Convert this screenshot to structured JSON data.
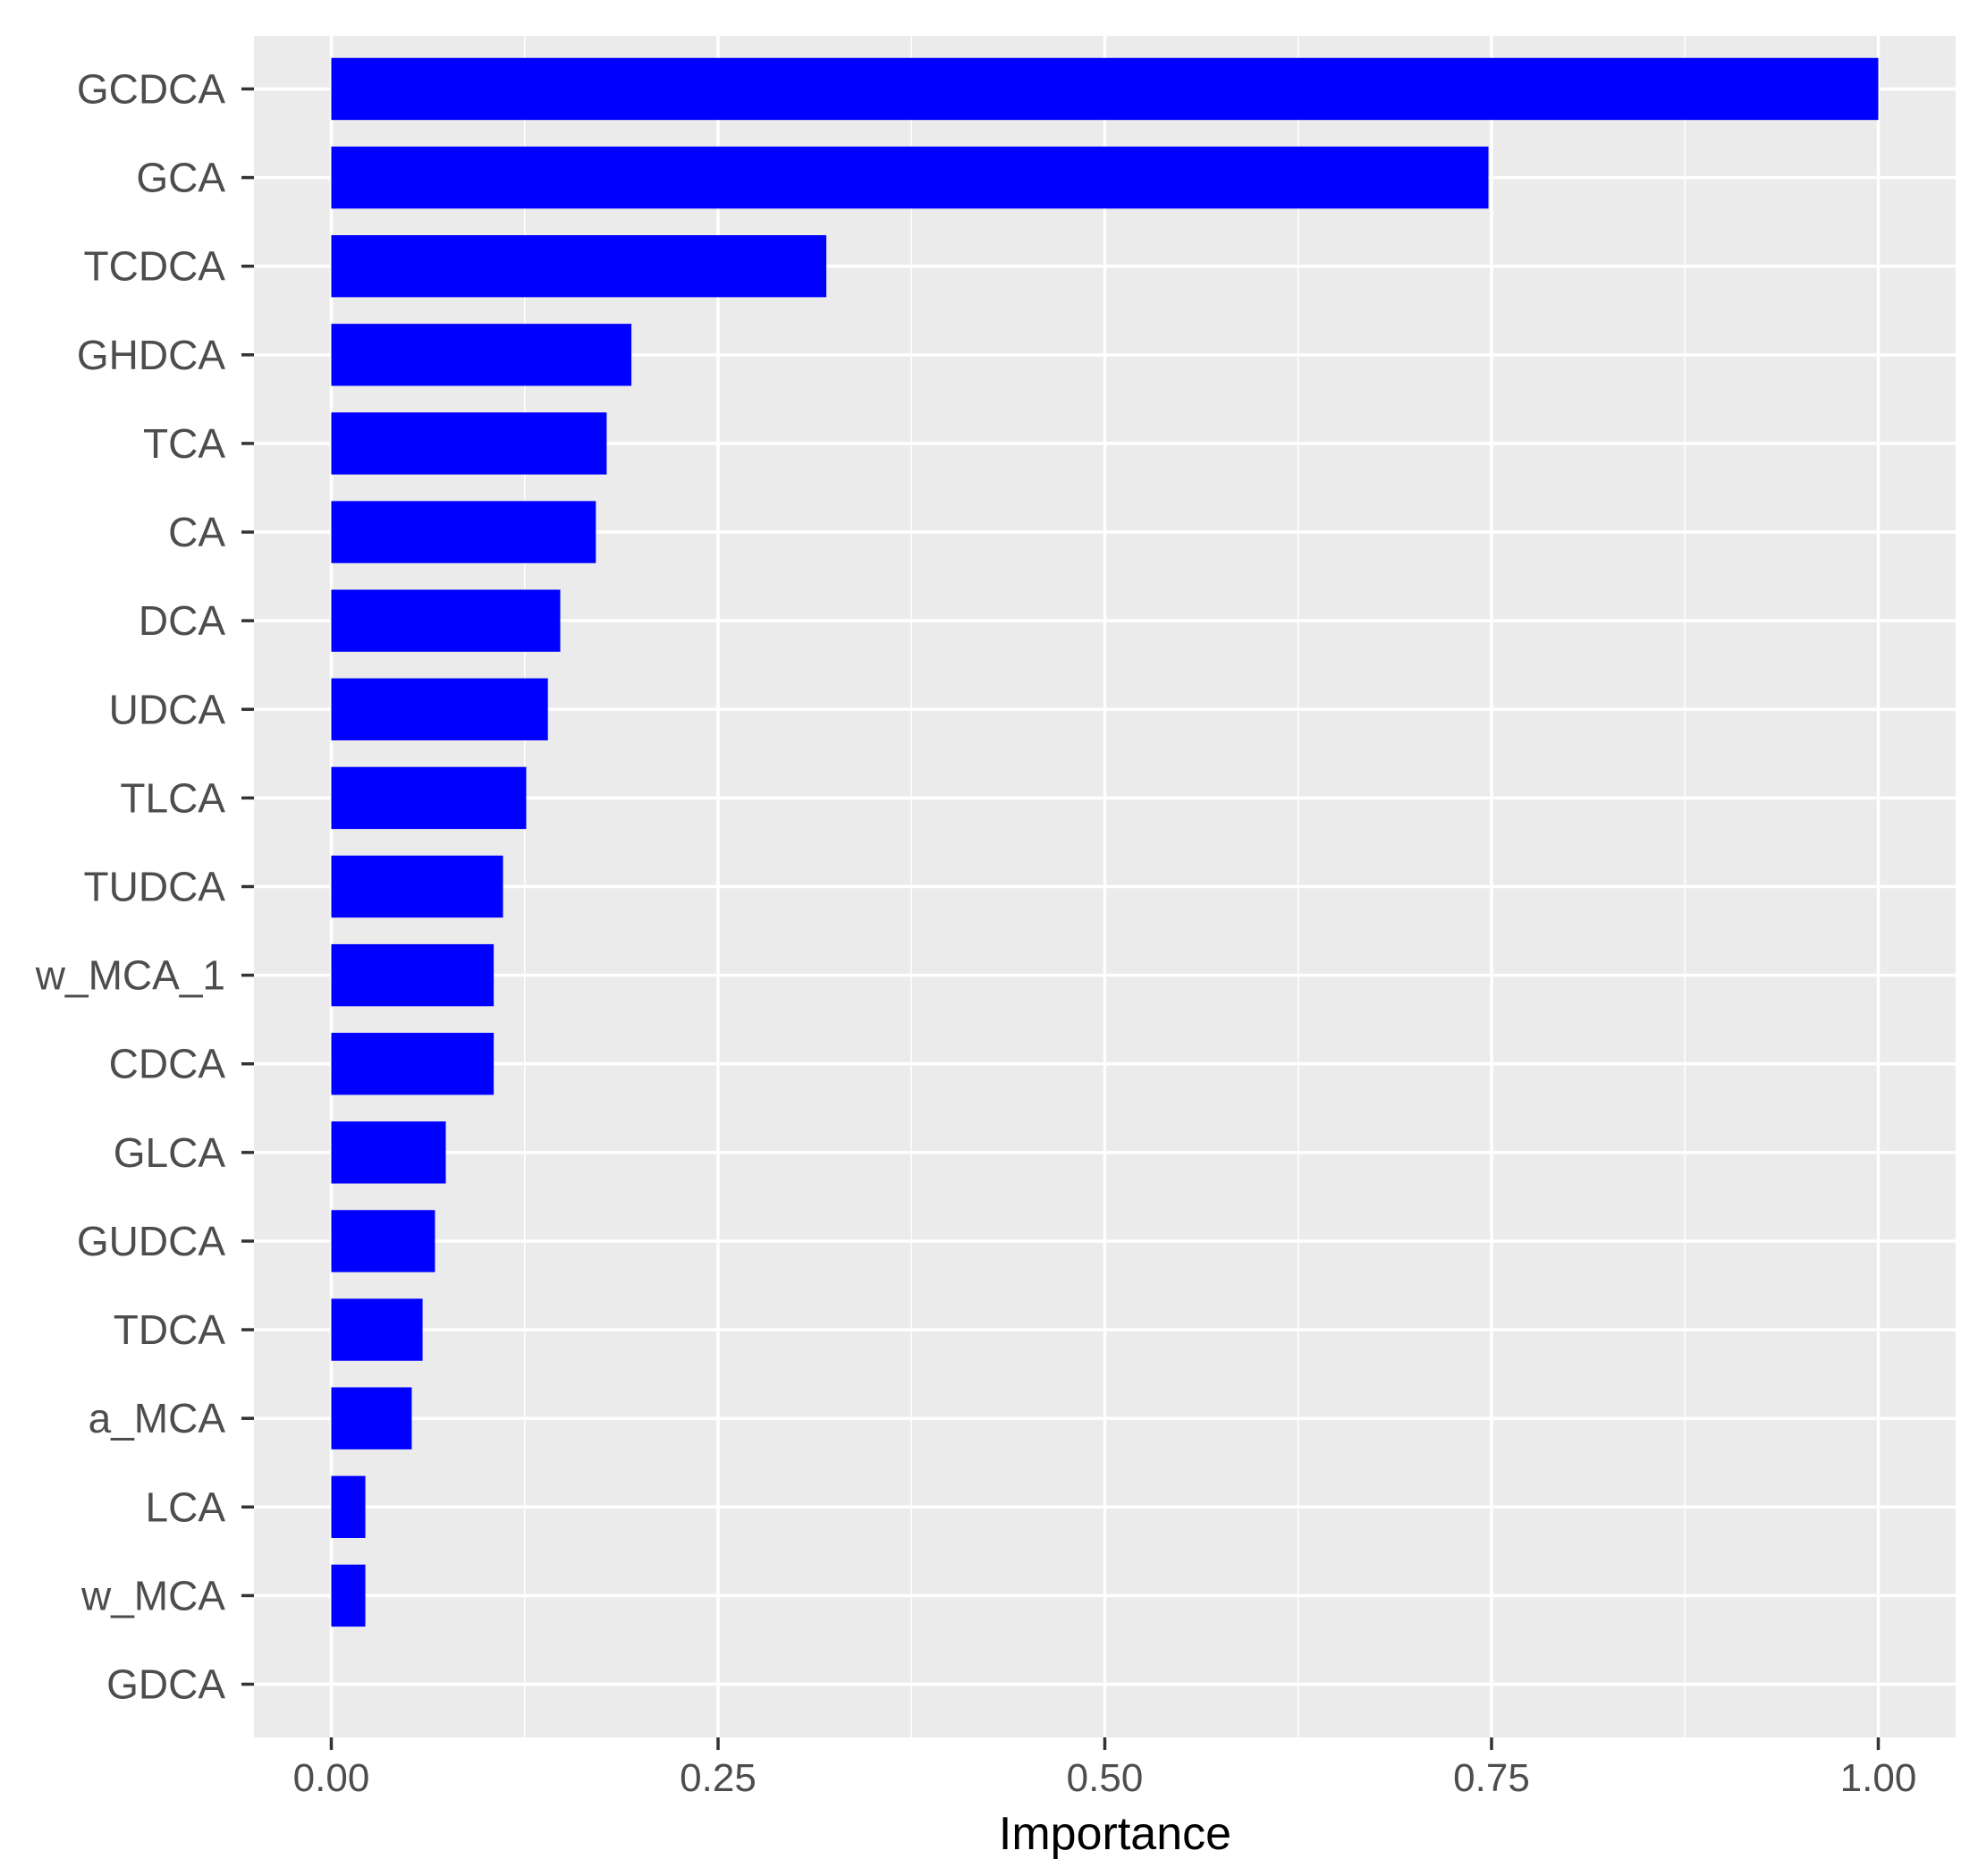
{
  "chart_data": {
    "type": "bar",
    "orientation": "horizontal",
    "categories": [
      "GCDCA",
      "GCA",
      "TCDCA",
      "GHDCA",
      "TCA",
      "CA",
      "DCA",
      "UDCA",
      "TLCA",
      "TUDCA",
      "w_MCA_1",
      "CDCA",
      "GLCA",
      "GUDCA",
      "TDCA",
      "a_MCA",
      "LCA",
      "w_MCA",
      "GDCA"
    ],
    "series": [
      {
        "values": [
          1.0,
          0.748,
          0.32,
          0.194,
          0.178,
          0.171,
          0.148,
          0.14,
          0.126,
          0.111,
          0.105,
          0.105,
          0.074,
          0.067,
          0.059,
          0.052,
          0.022,
          0.022,
          0.0
        ]
      }
    ],
    "xlabel": "Importance",
    "ylabel": "",
    "xlim": [
      -0.05,
      1.05
    ],
    "xticks": [
      0.0,
      0.25,
      0.5,
      0.75,
      1.0
    ],
    "xtick_labels": [
      "0.00",
      "0.25",
      "0.50",
      "0.75",
      "1.00"
    ],
    "grid": true,
    "legend": "none",
    "colors": {
      "bar": "#0000ff",
      "panel": "#ebebeb",
      "grid": "#ffffff"
    }
  }
}
